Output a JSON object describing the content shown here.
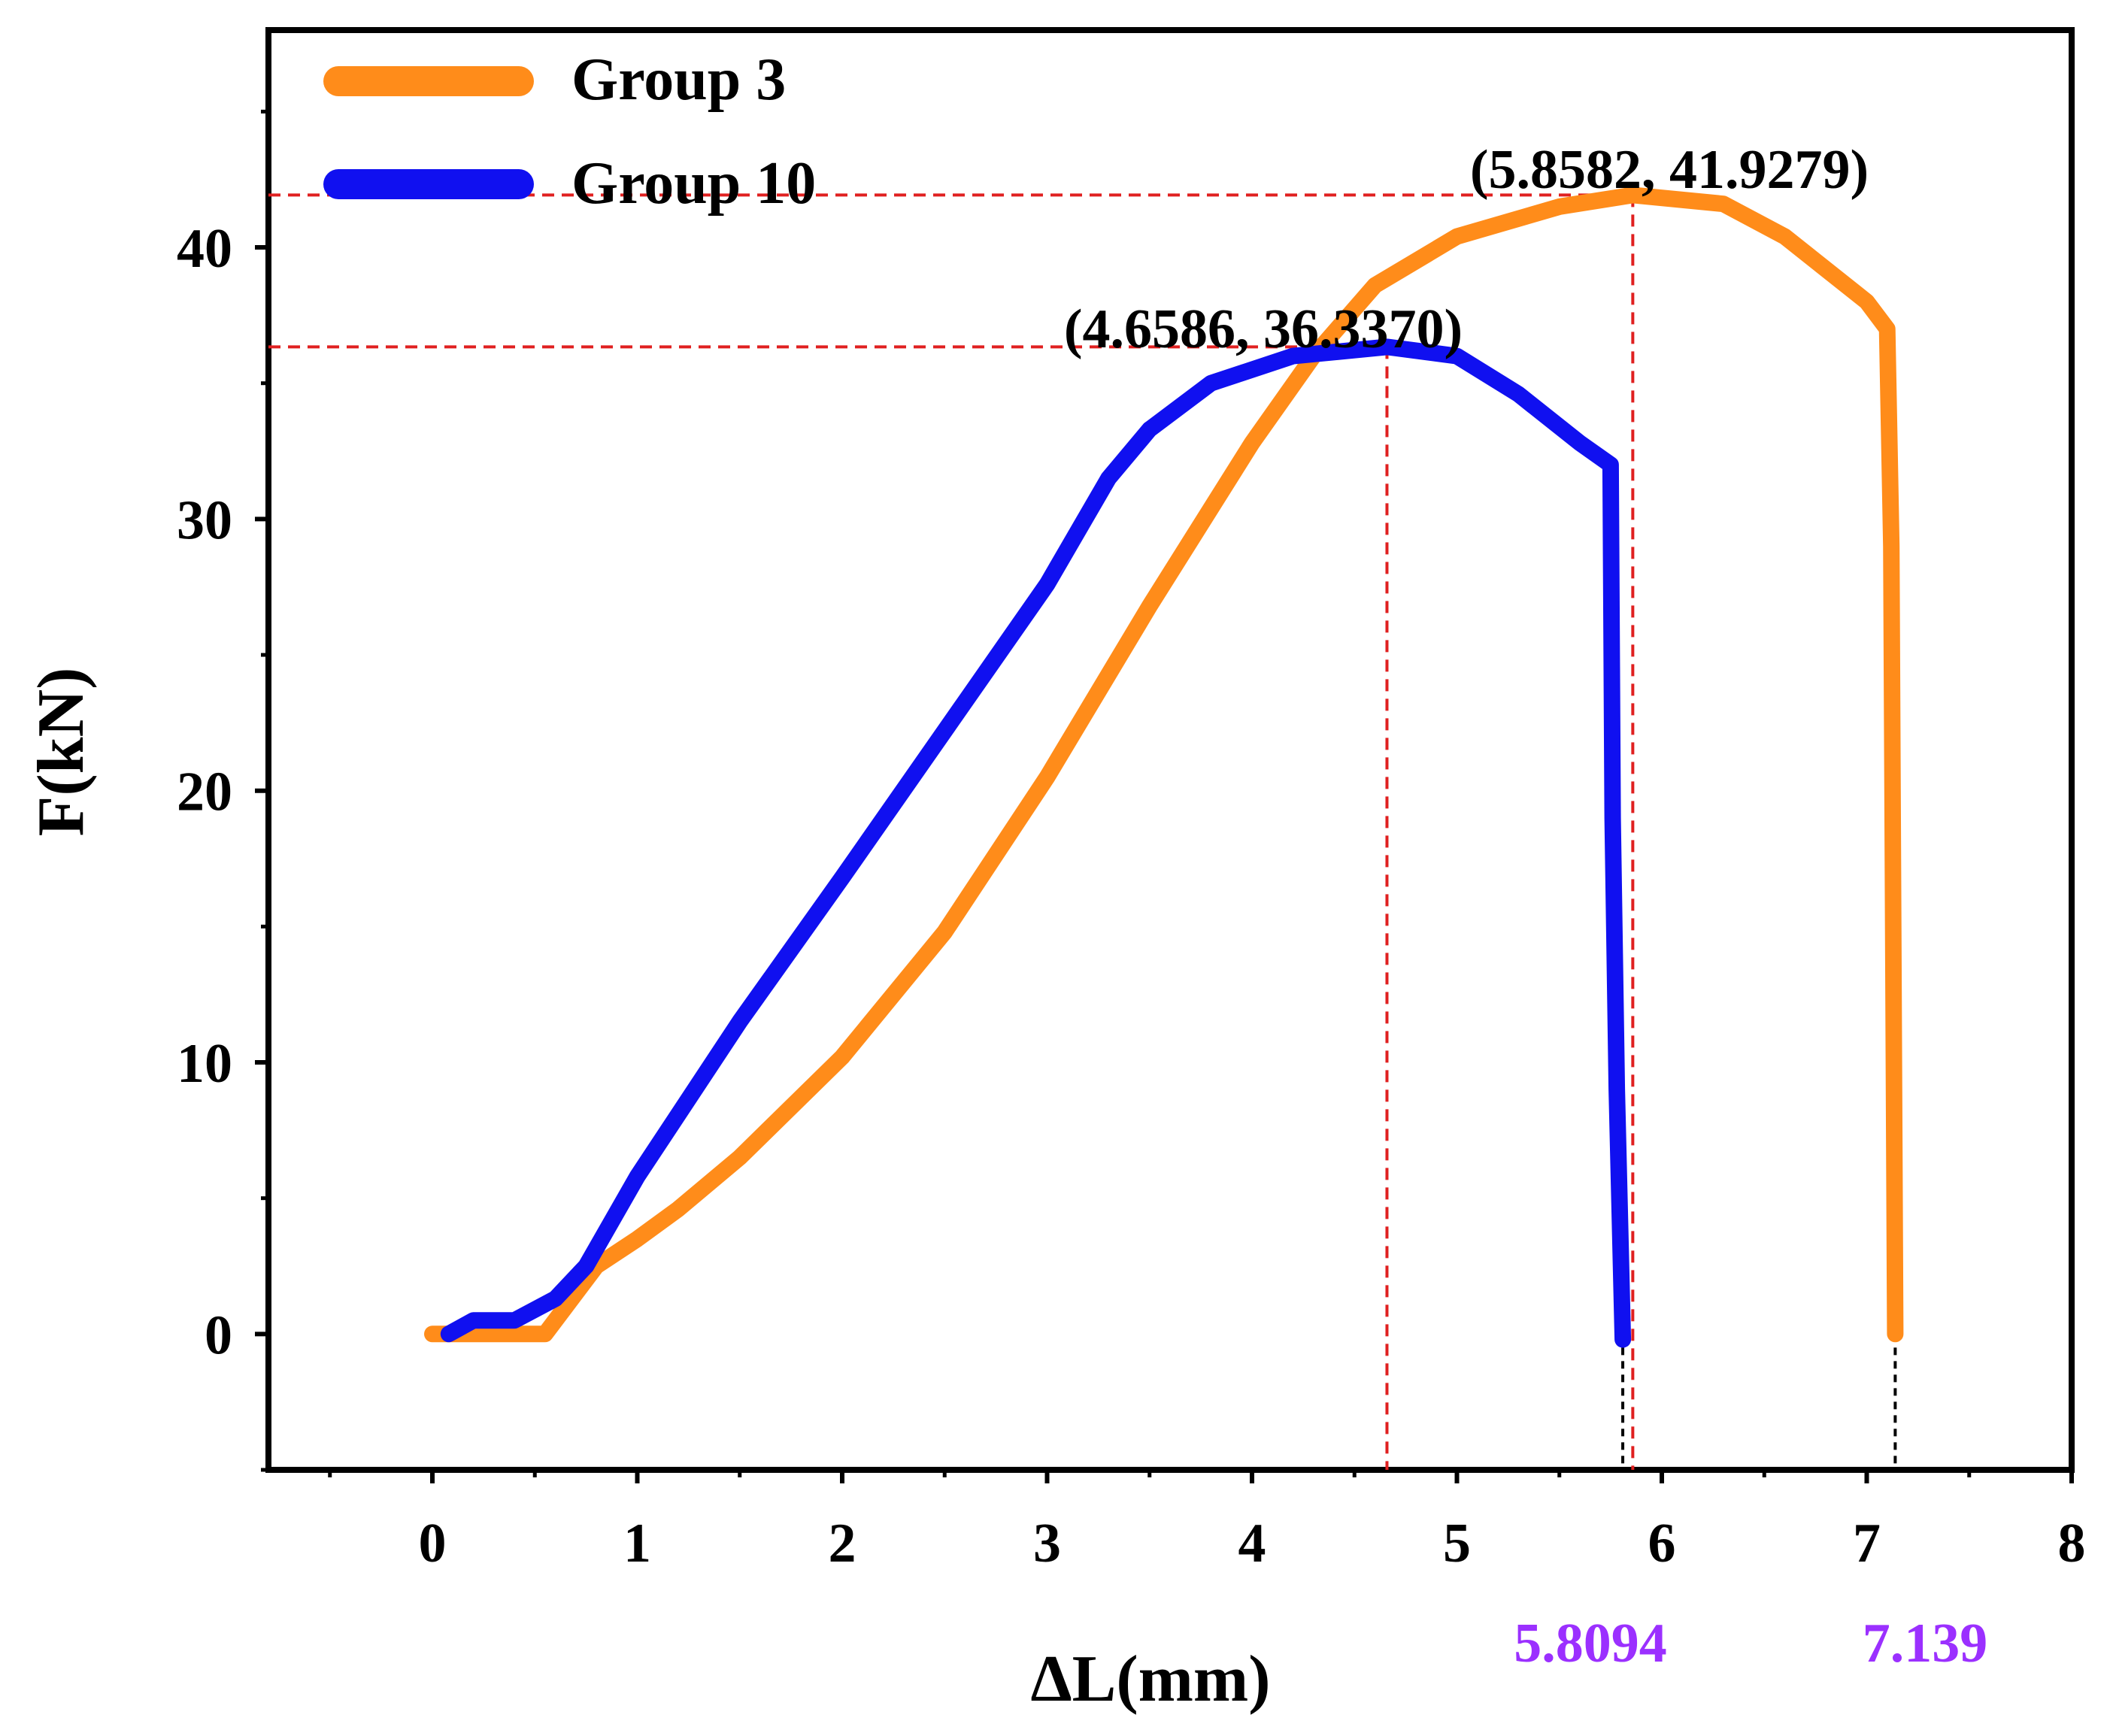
{
  "chart_data": {
    "type": "line",
    "xlabel": "ΔL(mm)",
    "ylabel": "F(kN)",
    "xlim": [
      -0.8,
      8
    ],
    "ylim": [
      -5,
      48
    ],
    "x_ticks": [
      0,
      1,
      2,
      3,
      4,
      5,
      6,
      7,
      8
    ],
    "y_ticks": [
      0,
      10,
      20,
      30,
      40
    ],
    "grid": false,
    "legend_position": "top-left",
    "colors": {
      "group3": "#FF8C1A",
      "group10": "#1010F0",
      "guide": "#E02020",
      "break_label": "#9B30FF",
      "break_guide": "#000000"
    },
    "series": [
      {
        "id": "group3",
        "name": "Group 3",
        "color": "#FF8C1A",
        "points": [
          [
            0.0,
            0.0
          ],
          [
            0.55,
            0.0
          ],
          [
            0.65,
            1.0
          ],
          [
            0.8,
            2.5
          ],
          [
            1.0,
            3.5
          ],
          [
            1.2,
            4.6
          ],
          [
            1.5,
            6.5
          ],
          [
            2.0,
            10.2
          ],
          [
            2.5,
            14.8
          ],
          [
            3.0,
            20.5
          ],
          [
            3.5,
            26.8
          ],
          [
            4.0,
            32.8
          ],
          [
            4.3,
            36.0
          ],
          [
            4.6,
            38.6
          ],
          [
            5.0,
            40.4
          ],
          [
            5.5,
            41.5
          ],
          [
            5.8582,
            41.9279
          ],
          [
            6.3,
            41.6
          ],
          [
            6.6,
            40.4
          ],
          [
            7.0,
            38.0
          ],
          [
            7.1,
            37.0
          ],
          [
            7.12,
            29.0
          ],
          [
            7.139,
            0.0
          ]
        ]
      },
      {
        "id": "group10",
        "name": "Group 10",
        "color": "#1010F0",
        "points": [
          [
            0.08,
            0.0
          ],
          [
            0.2,
            0.5
          ],
          [
            0.4,
            0.5
          ],
          [
            0.6,
            1.3
          ],
          [
            0.75,
            2.5
          ],
          [
            1.0,
            5.8
          ],
          [
            1.5,
            11.5
          ],
          [
            2.0,
            16.8
          ],
          [
            2.5,
            22.2
          ],
          [
            3.0,
            27.6
          ],
          [
            3.3,
            31.5
          ],
          [
            3.5,
            33.3
          ],
          [
            3.8,
            35.0
          ],
          [
            4.2,
            36.0
          ],
          [
            4.6586,
            36.337
          ],
          [
            5.0,
            36.0
          ],
          [
            5.3,
            34.6
          ],
          [
            5.6,
            32.8
          ],
          [
            5.75,
            32.0
          ],
          [
            5.76,
            19.0
          ],
          [
            5.78,
            9.0
          ],
          [
            5.8094,
            -0.2
          ]
        ]
      }
    ],
    "annotations": {
      "peak_group3": {
        "x": 5.8582,
        "y": 41.9279,
        "text": "(5.8582, 41.9279)"
      },
      "peak_group10": {
        "x": 4.6586,
        "y": 36.337,
        "text": "(4.6586, 36.3370)"
      },
      "break_group10": {
        "x": 5.8094,
        "text": "5.8094"
      },
      "break_group3": {
        "x": 7.139,
        "text": "7.139"
      }
    }
  }
}
